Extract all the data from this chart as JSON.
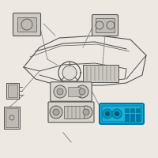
{
  "bg_color": "#ede8e2",
  "fig_width": 2.0,
  "fig_height": 2.0,
  "dpi": 100,
  "hc": "#1ab0d8",
  "hc_dark": "#0077a0",
  "hc_mid": "#0899be",
  "dc": "#555555",
  "lc": "#888888",
  "comp_fill": "#d0cbc4",
  "comp_fill2": "#bfbab3",
  "dash_fill": "#e0dbd4"
}
